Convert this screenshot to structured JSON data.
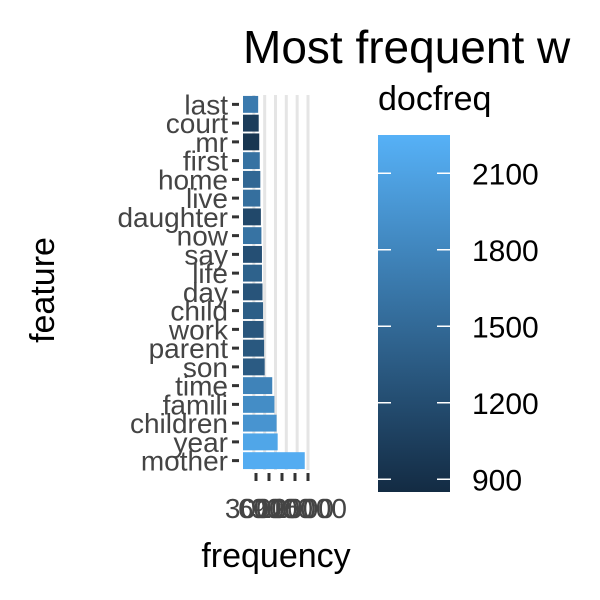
{
  "chart_data": {
    "type": "bar",
    "orientation": "horizontal",
    "title": "Most frequent w",
    "xlabel": "frequency",
    "ylabel": "feature",
    "categories": [
      "mother",
      "year",
      "children",
      "famili",
      "time",
      "son",
      "parent",
      "work",
      "child",
      "day",
      "life",
      "say",
      "now",
      "daughter",
      "live",
      "home",
      "first",
      "mr",
      "court",
      "last"
    ],
    "values": [
      5700,
      3200,
      3100,
      2900,
      2700,
      2000,
      1950,
      1900,
      1850,
      1800,
      1750,
      1750,
      1700,
      1650,
      1600,
      1600,
      1550,
      1500,
      1450,
      1400
    ],
    "docfreq": [
      2200,
      2130,
      1950,
      1870,
      1770,
      1350,
      1320,
      1300,
      1380,
      1280,
      1420,
      1230,
      1600,
      1150,
      1560,
      1480,
      1590,
      960,
      1040,
      1680
    ],
    "xlim": [
      0,
      6000
    ],
    "x_ticks": [
      3000,
      6000,
      9000,
      12000,
      15000
    ],
    "x_tick_labels": [
      "3000",
      "6000",
      "9000",
      "12000",
      "15000"
    ],
    "grid": true,
    "legend": {
      "title": "docfreq",
      "type": "colorbar",
      "range": [
        850,
        2250
      ],
      "ticks": [
        900,
        1200,
        1500,
        1800,
        2100
      ],
      "tick_labels": [
        "900",
        "1200",
        "1500",
        "1800",
        "2100"
      ],
      "color_low": "#132b43",
      "color_high": "#56b1f7",
      "placement": "right"
    }
  }
}
